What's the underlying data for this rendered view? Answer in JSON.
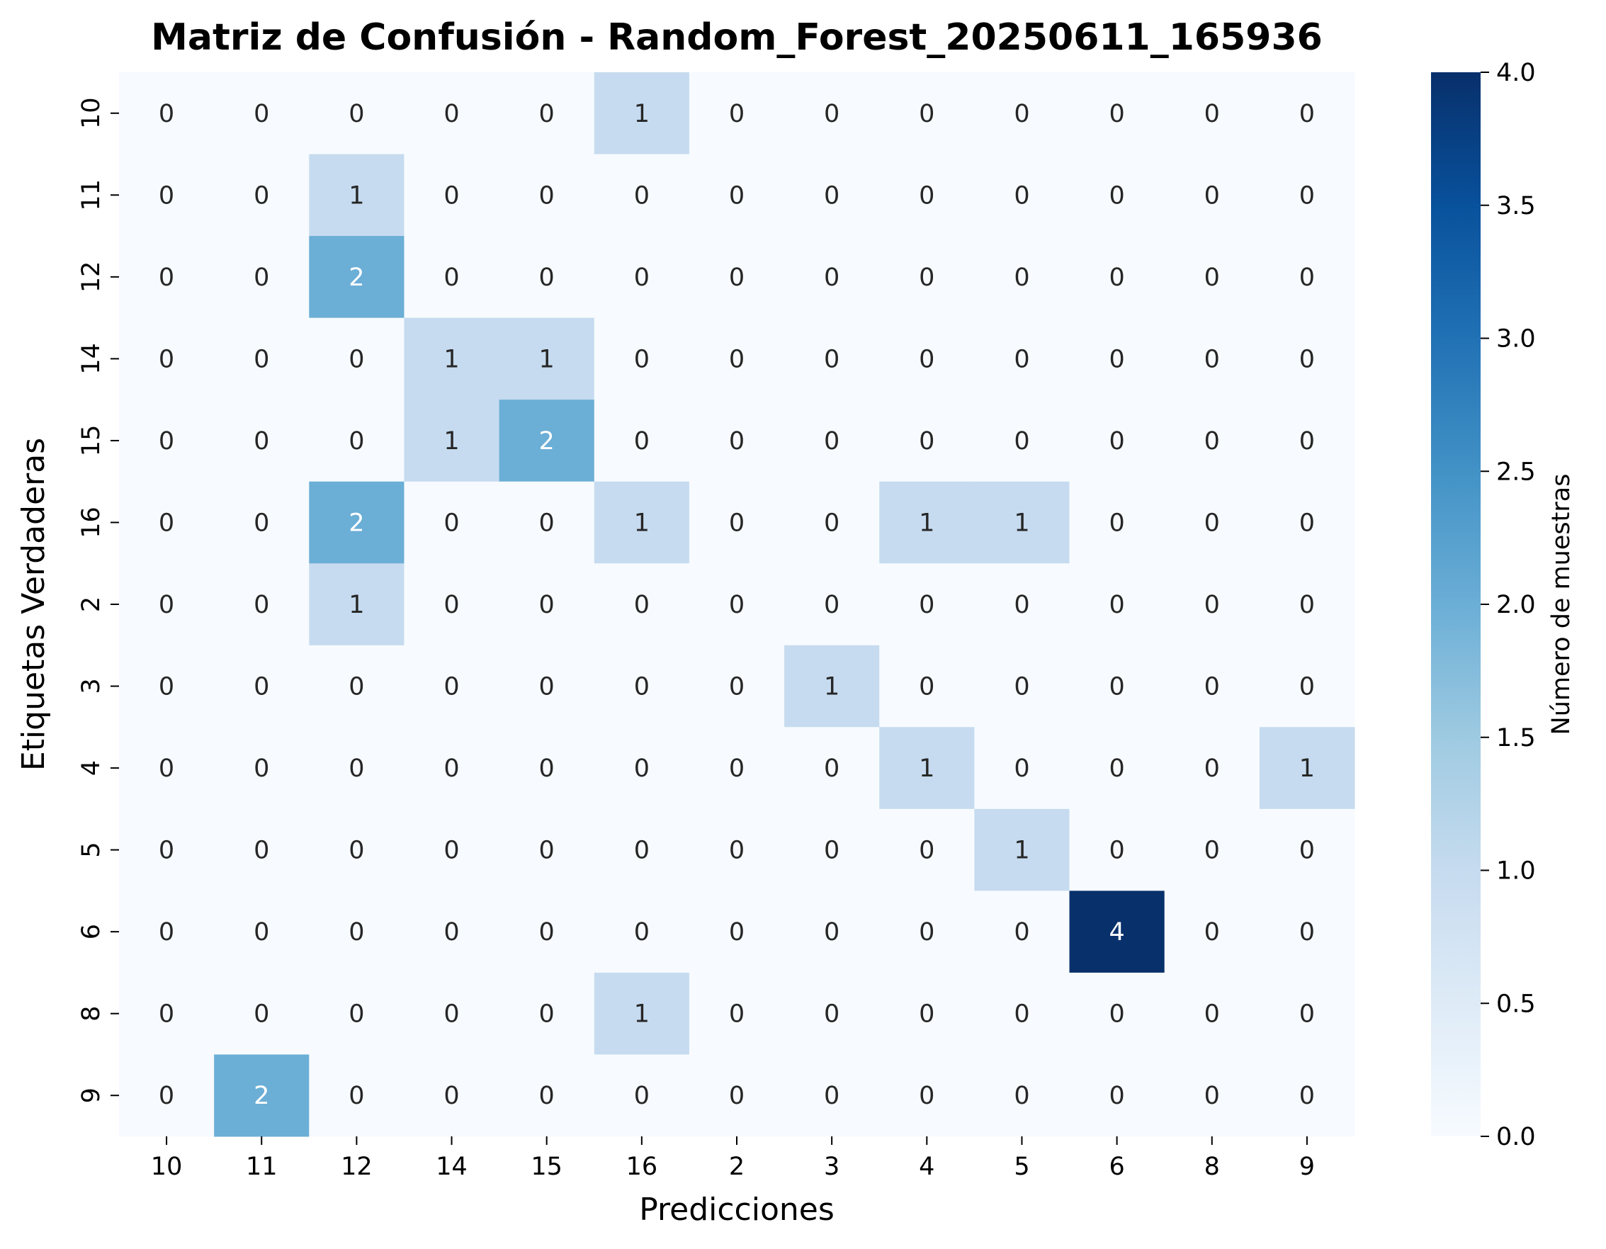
{
  "chart_data": {
    "type": "heatmap",
    "title": "Matriz de Confusión - Random_Forest_20250611_165936",
    "xlabel": "Predicciones",
    "ylabel": "Etiquetas Verdaderas",
    "x_categories": [
      "10",
      "11",
      "12",
      "14",
      "15",
      "16",
      "2",
      "3",
      "4",
      "5",
      "6",
      "8",
      "9"
    ],
    "y_categories": [
      "10",
      "11",
      "12",
      "14",
      "15",
      "16",
      "2",
      "3",
      "4",
      "5",
      "6",
      "8",
      "9"
    ],
    "values": [
      [
        0,
        0,
        0,
        0,
        0,
        1,
        0,
        0,
        0,
        0,
        0,
        0,
        0
      ],
      [
        0,
        0,
        1,
        0,
        0,
        0,
        0,
        0,
        0,
        0,
        0,
        0,
        0
      ],
      [
        0,
        0,
        2,
        0,
        0,
        0,
        0,
        0,
        0,
        0,
        0,
        0,
        0
      ],
      [
        0,
        0,
        0,
        1,
        1,
        0,
        0,
        0,
        0,
        0,
        0,
        0,
        0
      ],
      [
        0,
        0,
        0,
        1,
        2,
        0,
        0,
        0,
        0,
        0,
        0,
        0,
        0
      ],
      [
        0,
        0,
        2,
        0,
        0,
        1,
        0,
        0,
        1,
        1,
        0,
        0,
        0
      ],
      [
        0,
        0,
        1,
        0,
        0,
        0,
        0,
        0,
        0,
        0,
        0,
        0,
        0
      ],
      [
        0,
        0,
        0,
        0,
        0,
        0,
        0,
        1,
        0,
        0,
        0,
        0,
        0
      ],
      [
        0,
        0,
        0,
        0,
        0,
        0,
        0,
        0,
        1,
        0,
        0,
        0,
        1
      ],
      [
        0,
        0,
        0,
        0,
        0,
        0,
        0,
        0,
        0,
        1,
        0,
        0,
        0
      ],
      [
        0,
        0,
        0,
        0,
        0,
        0,
        0,
        0,
        0,
        0,
        4,
        0,
        0
      ],
      [
        0,
        0,
        0,
        0,
        0,
        1,
        0,
        0,
        0,
        0,
        0,
        0,
        0
      ],
      [
        0,
        2,
        0,
        0,
        0,
        0,
        0,
        0,
        0,
        0,
        0,
        0,
        0
      ]
    ],
    "colormap": "Blues",
    "color_range": [
      0.0,
      4.0
    ],
    "colorbar_label": "Número de muestras",
    "colorbar_ticks": [
      "0.0",
      "0.5",
      "1.0",
      "1.5",
      "2.0",
      "2.5",
      "3.0",
      "3.5",
      "4.0"
    ],
    "colors": {
      "low": "#f7fbff",
      "value_1": "#c6dbef",
      "value_2": "#6baed6",
      "high": "#08306b",
      "text_dark": "#262626",
      "text_light": "#ffffff"
    },
    "grid": false,
    "legend": "colorbar-right"
  }
}
